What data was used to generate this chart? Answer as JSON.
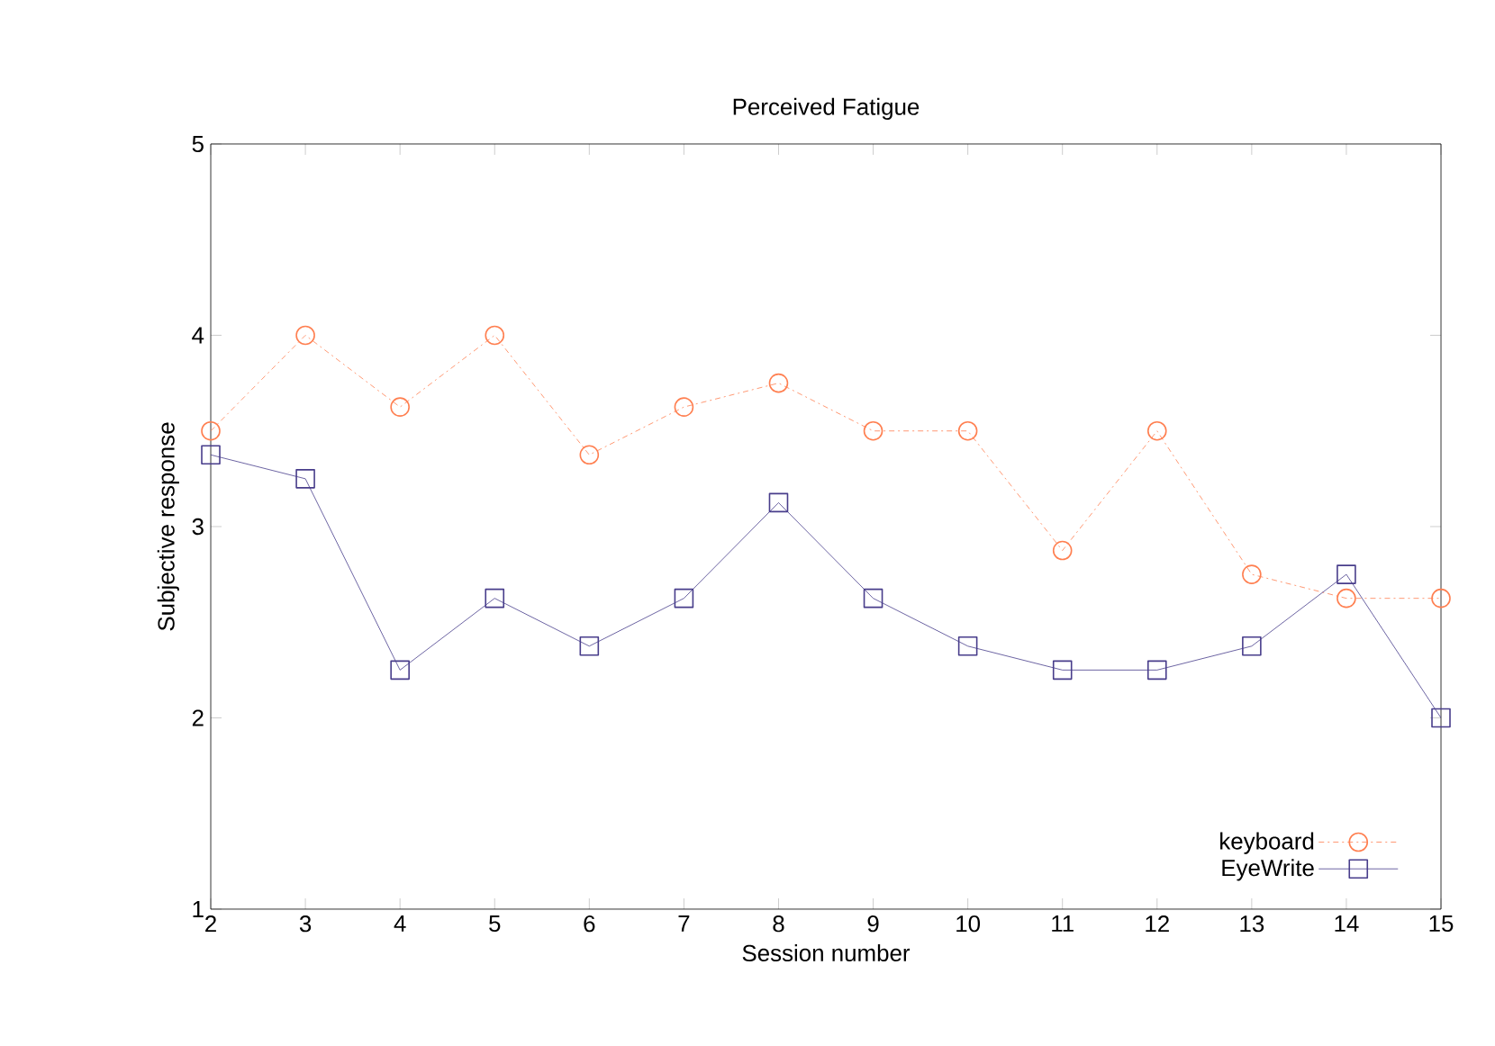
{
  "chart_data": {
    "type": "line",
    "title": "Perceived Fatigue",
    "xlabel": "Session number",
    "ylabel": "Subjective response",
    "x": [
      2,
      3,
      4,
      5,
      6,
      7,
      8,
      9,
      10,
      11,
      12,
      13,
      14,
      15
    ],
    "series": [
      {
        "name": "keyboard",
        "color": "#ff7f50",
        "marker": "circle",
        "line_style": "dotted",
        "values": [
          3.5,
          4.0,
          3.625,
          4.0,
          3.375,
          3.625,
          3.75,
          3.5,
          3.5,
          2.875,
          3.5,
          2.75,
          2.625,
          2.625
        ]
      },
      {
        "name": "EyeWrite",
        "color": "#483d8b",
        "marker": "square",
        "line_style": "solid",
        "values": [
          3.375,
          3.25,
          2.25,
          2.625,
          2.375,
          2.625,
          3.125,
          2.625,
          2.375,
          2.25,
          2.25,
          2.375,
          2.75,
          2.0
        ]
      }
    ],
    "xlim": [
      2,
      15
    ],
    "ylim": [
      1,
      5
    ],
    "xticks": [
      2,
      3,
      4,
      5,
      6,
      7,
      8,
      9,
      10,
      11,
      12,
      13,
      14,
      15
    ],
    "yticks": [
      1,
      2,
      3,
      4,
      5
    ],
    "grid": false,
    "legend": "bottom right"
  }
}
